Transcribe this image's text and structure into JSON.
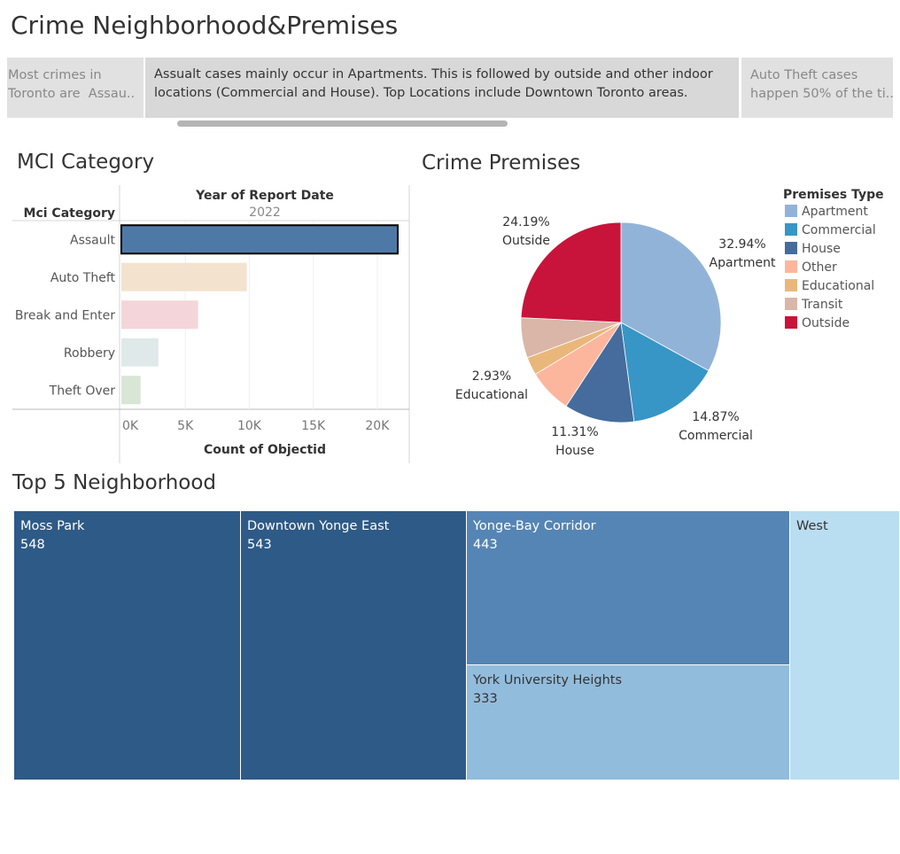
{
  "dashboard": {
    "title": "Crime Neighborhood&Premises"
  },
  "story": [
    {
      "text": "Most crimes in\nToronto are  Assau.."
    },
    {
      "text": "Assualt cases mainly occur in Apartments. This is followed by outside and other indoor locations (Commercial and House). Top Locations include Downtown Toronto areas."
    },
    {
      "text": "Auto Theft cases\nhappen 50% of the ti.."
    }
  ],
  "mci": {
    "title": "MCI Category",
    "row_header": "Mci Category",
    "column_header": "Year of Report Date",
    "year": "2022",
    "x_axis_label": "Count of Objectid"
  },
  "premises": {
    "title": "Crime Premises",
    "legend_title": "Premises Type"
  },
  "top5": {
    "title": "Top 5 Neighborhood"
  },
  "colors": {
    "assault_bar": "#4e79a7",
    "treemap_dark": "#2e5a87",
    "treemap_mid": "#5585b5",
    "treemap_light": "#92bcdc",
    "treemap_lightest": "#b9ddf1"
  },
  "chart_data": [
    {
      "type": "bar",
      "orientation": "horizontal",
      "title": "MCI Category",
      "categories": [
        "Assault",
        "Auto Theft",
        "Break and Enter",
        "Robbery",
        "Theft Over"
      ],
      "values": [
        21600,
        9800,
        6000,
        2900,
        1500
      ],
      "colors": [
        "#4e79a7",
        "#f3e2ce",
        "#f4d6da",
        "#dfe9e9",
        "#d7e6d5"
      ],
      "highlighted": "Assault",
      "xlabel": "Count of Objectid",
      "xlim": [
        0,
        22500
      ],
      "xticks": [
        0,
        5000,
        10000,
        15000,
        20000
      ],
      "xtick_labels": [
        "0K",
        "5K",
        "10K",
        "15K",
        "20K"
      ]
    },
    {
      "type": "pie",
      "title": "Crime Premises",
      "legend_title": "Premises Type",
      "legend_position": "right",
      "slices": [
        {
          "label": "Apartment",
          "value": 32.94,
          "color": "#92b3d8",
          "data_label": "32.94%"
        },
        {
          "label": "Commercial",
          "value": 14.87,
          "color": "#3796c6",
          "data_label": "14.87%"
        },
        {
          "label": "House",
          "value": 11.31,
          "color": "#456c9c",
          "data_label": "11.31%"
        },
        {
          "label": "Other",
          "value": 7.09,
          "color": "#fcb69e",
          "data_label": ""
        },
        {
          "label": "Educational",
          "value": 2.93,
          "color": "#eab77b",
          "data_label": "2.93%"
        },
        {
          "label": "Transit",
          "value": 6.47,
          "color": "#d9b6a8",
          "data_label": ""
        },
        {
          "label": "Outside",
          "value": 24.19,
          "color": "#c8143a",
          "data_label": "24.19%"
        }
      ]
    },
    {
      "type": "treemap",
      "title": "Top 5 Neighborhood",
      "items": [
        {
          "label": "Moss Park",
          "value": 548
        },
        {
          "label": "Downtown Yonge East",
          "value": 543
        },
        {
          "label": "Yonge-Bay Corridor",
          "value": 443
        },
        {
          "label": "York University Heights",
          "value": 333
        },
        {
          "label": "West",
          "value": null
        }
      ]
    }
  ]
}
